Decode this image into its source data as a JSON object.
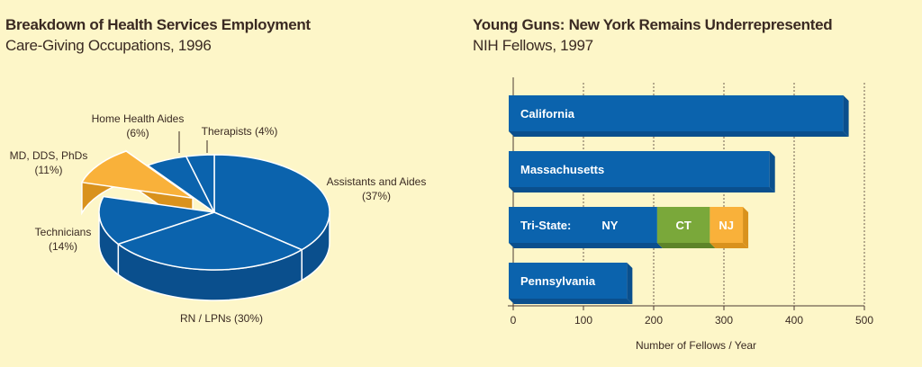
{
  "left_chart": {
    "title": "Breakdown of Health Services Employment",
    "subtitle": "Care-Giving Occupations, 1996"
  },
  "right_chart": {
    "title": "Young Guns: New York Remains Underrepresented",
    "subtitle": "NIH Fellows, 1997"
  },
  "colors": {
    "background": "#fdf6c8",
    "blue_top": "#0b63ad",
    "blue_side": "#0a4f8d",
    "orange_top": "#f9b13a",
    "orange_side": "#d9921d",
    "green_top": "#7aa83a",
    "green_side": "#5d8429",
    "text": "#3a2a22"
  },
  "chart_data": [
    {
      "type": "pie",
      "title": "Breakdown of Health Services Employment",
      "subtitle": "Care-Giving Occupations, 1996",
      "slices": [
        {
          "label": "Assistants and Aides",
          "pct_label": "(37%)",
          "value": 37
        },
        {
          "label": "RN / LPNs (30%)",
          "pct_label": "",
          "value": 30
        },
        {
          "label": "Technicians",
          "pct_label": "(14%)",
          "value": 14
        },
        {
          "label": "MD, DDS, PhDs",
          "pct_label": "(11%)",
          "value": 11,
          "exploded": true
        },
        {
          "label": "Home Health Aides",
          "pct_label": "(6%)",
          "value": 6
        },
        {
          "label": "Therapists (4%)",
          "pct_label": "",
          "value": 4
        }
      ]
    },
    {
      "type": "bar",
      "orientation": "horizontal",
      "title": "Young Guns: New York Remains Underrepresented",
      "subtitle": "NIH Fellows, 1997",
      "xlabel": "Number of Fellows / Year",
      "xlim": [
        0,
        500
      ],
      "xticks": [
        "0",
        "100",
        "200",
        "300",
        "400",
        "500"
      ],
      "grid": "vertical dashed",
      "bars": [
        {
          "label": "California",
          "segments": [
            {
              "name": "",
              "value": 470
            }
          ]
        },
        {
          "label": "Massachusetts",
          "segments": [
            {
              "name": "",
              "value": 365
            }
          ]
        },
        {
          "label": "Tri-State:",
          "segments": [
            {
              "name": "NY",
              "value": 205
            },
            {
              "name": "CT",
              "value": 75
            },
            {
              "name": "NJ",
              "value": 47
            }
          ]
        },
        {
          "label": "Pennsylvania",
          "segments": [
            {
              "name": "",
              "value": 162
            }
          ]
        }
      ]
    }
  ]
}
